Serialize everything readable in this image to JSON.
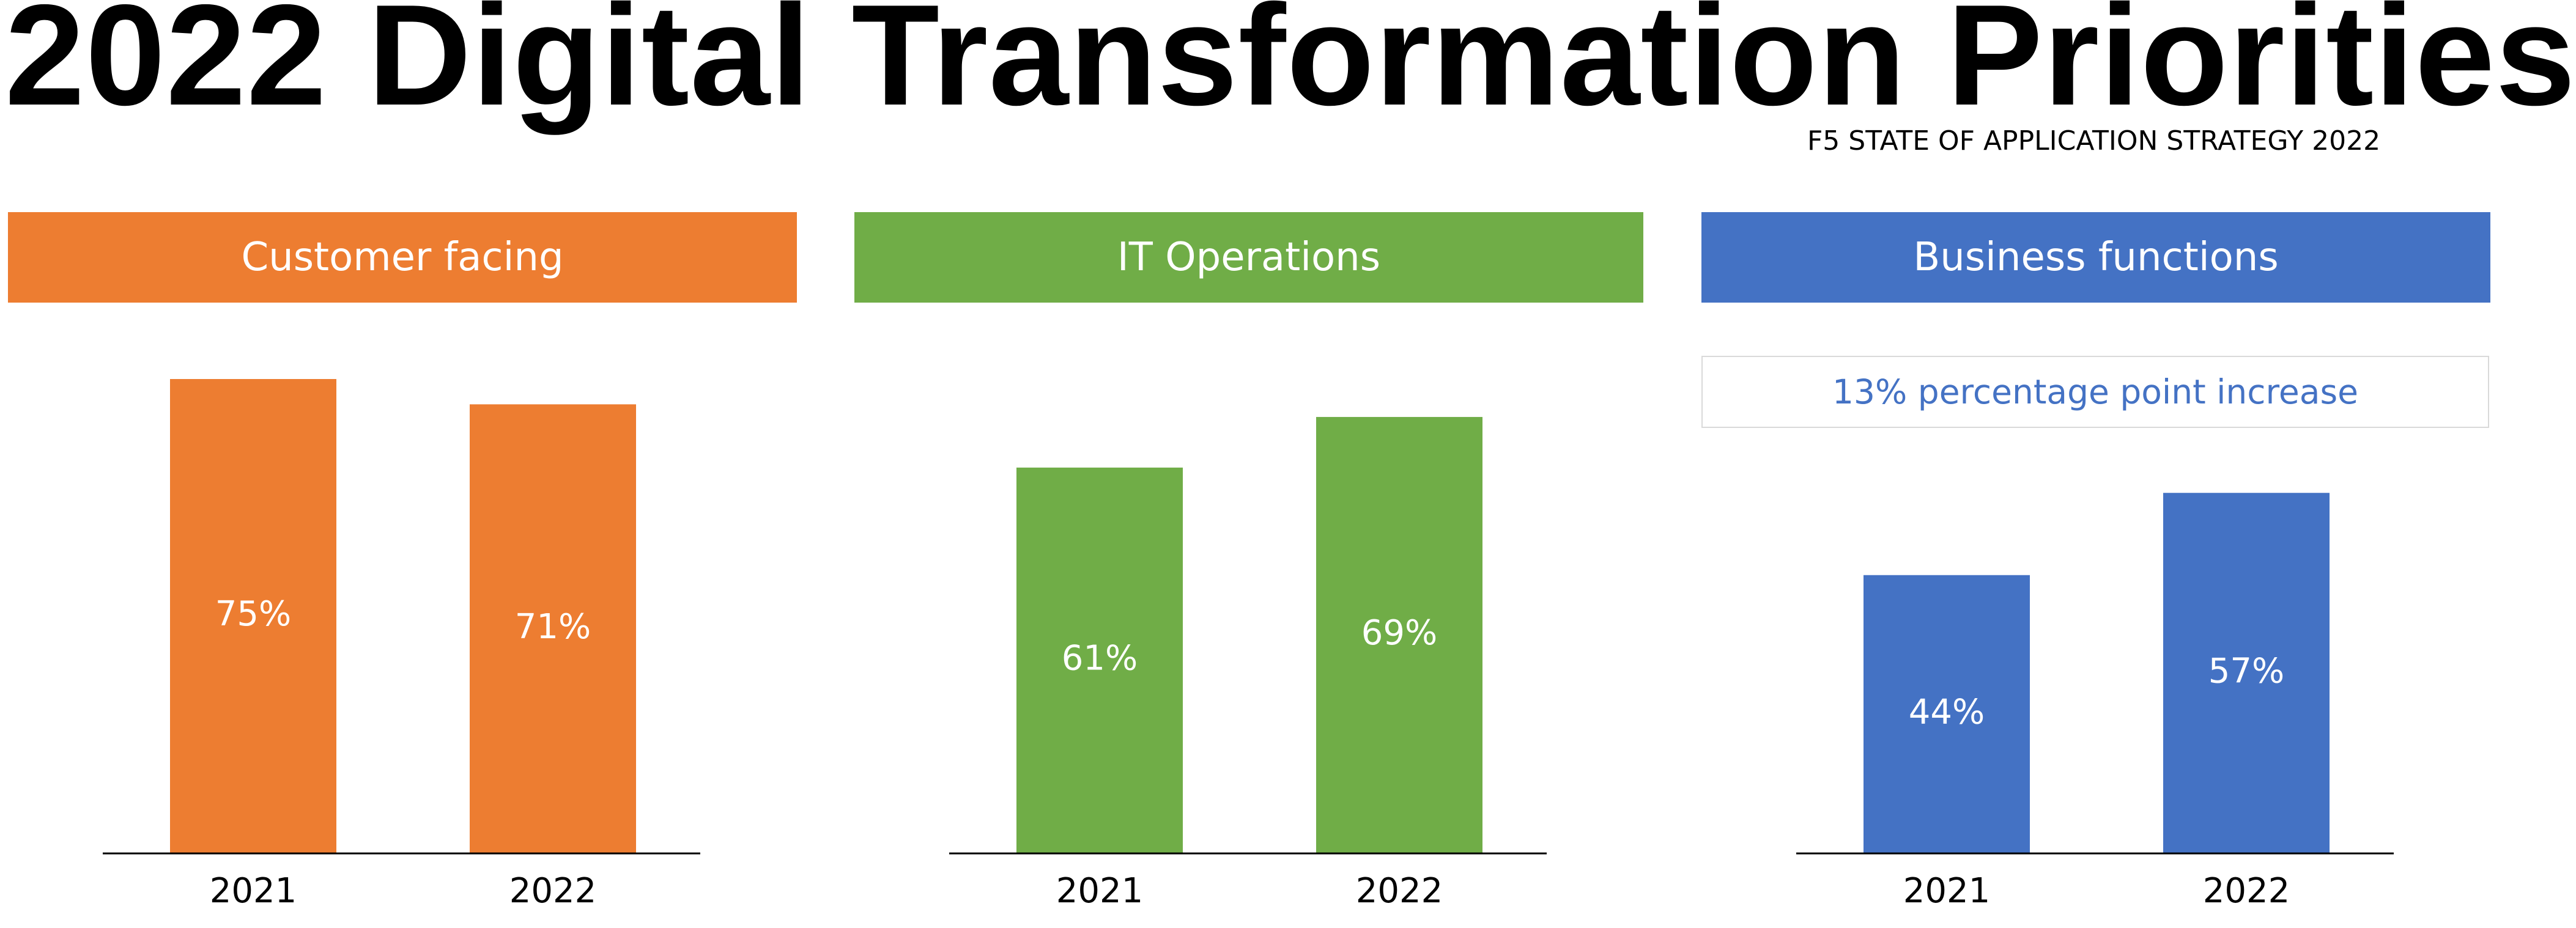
{
  "title": "2022 Digital Transformation Priorities",
  "source": "F5 STATE OF APPLICATION STRATEGY 2022",
  "colors": {
    "customer_facing": "#ed7d31",
    "it_operations": "#70ad47",
    "business_functions": "#4472c4",
    "axis": "#000000",
    "callout_text": "#4472c4"
  },
  "panels": [
    {
      "header": "Customer facing",
      "callout": ""
    },
    {
      "header": "IT Operations",
      "callout": ""
    },
    {
      "header": "Business functions",
      "callout": "13% percentage point increase"
    }
  ],
  "chart_data": [
    {
      "type": "bar",
      "title": "Customer facing",
      "categories": [
        "2021",
        "2022"
      ],
      "values": [
        75,
        71
      ],
      "data_labels": [
        "75%",
        "71%"
      ],
      "unit": "%",
      "ylim": [
        0,
        75
      ],
      "grid": false,
      "color": "#ed7d31"
    },
    {
      "type": "bar",
      "title": "IT Operations",
      "categories": [
        "2021",
        "2022"
      ],
      "values": [
        61,
        69
      ],
      "data_labels": [
        "61%",
        "69%"
      ],
      "unit": "%",
      "ylim": [
        0,
        75
      ],
      "grid": false,
      "color": "#70ad47"
    },
    {
      "type": "bar",
      "title": "Business functions",
      "categories": [
        "2021",
        "2022"
      ],
      "values": [
        44,
        57
      ],
      "data_labels": [
        "44%",
        "57%"
      ],
      "unit": "%",
      "ylim": [
        0,
        75
      ],
      "grid": false,
      "color": "#4472c4",
      "annotation": "13% percentage point increase"
    }
  ]
}
